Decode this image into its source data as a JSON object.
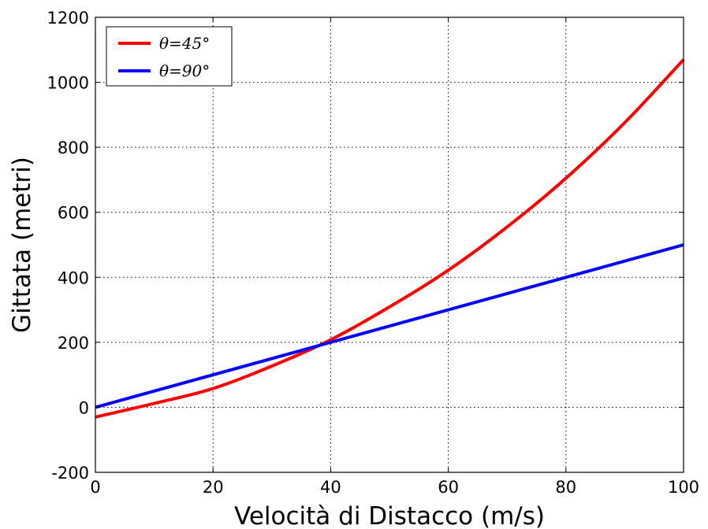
{
  "chart_data": {
    "type": "line",
    "xlabel": "Velocità di Distacco (m/s)",
    "ylabel": "Gittata (metri)",
    "xlim": [
      0,
      100
    ],
    "ylim": [
      -200,
      1200
    ],
    "x_ticks": [
      0,
      20,
      40,
      60,
      80,
      100
    ],
    "y_ticks": [
      -200,
      0,
      200,
      400,
      600,
      800,
      1000,
      1200
    ],
    "x_tick_labels": [
      "0",
      "20",
      "40",
      "60",
      "80",
      "100"
    ],
    "y_tick_labels": [
      "-200",
      "0",
      "200",
      "400",
      "600",
      "800",
      "1000",
      "1200"
    ],
    "grid": true,
    "legend_position": "top-left",
    "series": [
      {
        "name": "θ=45°",
        "color": "#ff0000",
        "x": [
          0,
          10,
          20,
          30,
          40,
          50,
          60,
          70,
          80,
          90,
          100
        ],
        "y": [
          -30,
          12,
          58,
          127,
          208,
          309,
          422,
          555,
          705,
          876,
          1070
        ]
      },
      {
        "name": "θ=90°",
        "color": "#0000ff",
        "x": [
          0,
          100
        ],
        "y": [
          0,
          500
        ]
      }
    ]
  }
}
